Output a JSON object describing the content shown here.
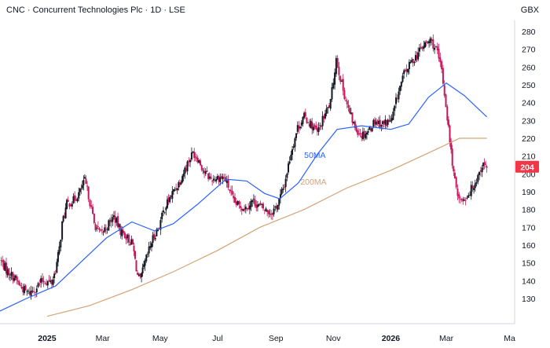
{
  "header": {
    "title": "CNC · Concurrent Technologies Plc · 1D · LSE",
    "currency": "GBX"
  },
  "colors": {
    "up": "#131722",
    "down": "#c2185b",
    "ma50": "#2962ff",
    "ma200": "#d4a373",
    "last_bg": "#f23645",
    "grid": "#f0f3fa"
  },
  "chart_data": {
    "type": "candlestick",
    "title": "CNC · Concurrent Technologies Plc · 1D · LSE",
    "ylabel": "GBX",
    "ylim": [
      120,
      285
    ],
    "yticks": [
      130,
      140,
      150,
      160,
      170,
      180,
      190,
      200,
      210,
      220,
      230,
      240,
      250,
      260,
      270,
      280
    ],
    "xticks": [
      {
        "label": "2025",
        "date": "2025-01-01",
        "bold": true
      },
      {
        "label": "Mar",
        "date": "2025-03-01",
        "bold": false
      },
      {
        "label": "May",
        "date": "2025-05-01",
        "bold": false
      },
      {
        "label": "Jul",
        "date": "2025-07-01",
        "bold": false
      },
      {
        "label": "Sep",
        "date": "2025-09-01",
        "bold": false
      },
      {
        "label": "Nov",
        "date": "2025-11-01",
        "bold": false
      },
      {
        "label": "2026",
        "date": "2026-01-01",
        "bold": true
      },
      {
        "label": "Mar",
        "date": "2026-03-01",
        "bold": false
      },
      {
        "label": "Ma",
        "date": "2026-05-01",
        "bold": false
      }
    ],
    "last_price": 204,
    "close_series": [
      [
        "2024-11-12",
        152
      ],
      [
        "2024-11-20",
        145
      ],
      [
        "2024-11-27",
        142
      ],
      [
        "2024-12-05",
        136
      ],
      [
        "2024-12-12",
        133
      ],
      [
        "2024-12-18",
        135
      ],
      [
        "2024-12-27",
        140
      ],
      [
        "2025-01-06",
        139
      ],
      [
        "2025-01-10",
        146
      ],
      [
        "2025-01-14",
        158
      ],
      [
        "2025-01-17",
        172
      ],
      [
        "2025-01-22",
        183
      ],
      [
        "2025-01-29",
        185
      ],
      [
        "2025-02-05",
        190
      ],
      [
        "2025-02-10",
        196
      ],
      [
        "2025-02-14",
        188
      ],
      [
        "2025-02-20",
        172
      ],
      [
        "2025-02-27",
        166
      ],
      [
        "2025-03-06",
        171
      ],
      [
        "2025-03-13",
        176
      ],
      [
        "2025-03-20",
        168
      ],
      [
        "2025-03-26",
        165
      ],
      [
        "2025-04-02",
        160
      ],
      [
        "2025-04-07",
        143
      ],
      [
        "2025-04-10",
        140
      ],
      [
        "2025-04-15",
        150
      ],
      [
        "2025-04-22",
        162
      ],
      [
        "2025-04-30",
        171
      ],
      [
        "2025-05-06",
        181
      ],
      [
        "2025-05-14",
        189
      ],
      [
        "2025-05-22",
        196
      ],
      [
        "2025-05-30",
        206
      ],
      [
        "2025-06-05",
        212
      ],
      [
        "2025-06-10",
        209
      ],
      [
        "2025-06-17",
        201
      ],
      [
        "2025-06-24",
        197
      ],
      [
        "2025-07-01",
        198
      ],
      [
        "2025-07-08",
        198
      ],
      [
        "2025-07-14",
        191
      ],
      [
        "2025-07-18",
        184
      ],
      [
        "2025-07-24",
        182
      ],
      [
        "2025-07-31",
        181
      ],
      [
        "2025-08-07",
        185
      ],
      [
        "2025-08-14",
        182
      ],
      [
        "2025-08-20",
        180
      ],
      [
        "2025-08-27",
        178
      ],
      [
        "2025-09-03",
        183
      ],
      [
        "2025-09-10",
        194
      ],
      [
        "2025-09-17",
        212
      ],
      [
        "2025-09-24",
        226
      ],
      [
        "2025-10-01",
        232
      ],
      [
        "2025-10-08",
        228
      ],
      [
        "2025-10-15",
        223
      ],
      [
        "2025-10-22",
        232
      ],
      [
        "2025-10-29",
        240
      ],
      [
        "2025-11-04",
        265
      ],
      [
        "2025-11-10",
        250
      ],
      [
        "2025-11-17",
        236
      ],
      [
        "2025-11-24",
        226
      ],
      [
        "2025-12-01",
        222
      ],
      [
        "2025-12-08",
        224
      ],
      [
        "2025-12-15",
        230
      ],
      [
        "2025-12-22",
        228
      ],
      [
        "2026-01-02",
        230
      ],
      [
        "2026-01-08",
        244
      ],
      [
        "2026-01-15",
        256
      ],
      [
        "2026-01-22",
        262
      ],
      [
        "2026-01-30",
        268
      ],
      [
        "2026-02-05",
        272
      ],
      [
        "2026-02-12",
        275
      ],
      [
        "2026-02-18",
        270
      ],
      [
        "2026-02-24",
        258
      ],
      [
        "2026-03-02",
        232
      ],
      [
        "2026-03-06",
        212
      ],
      [
        "2026-03-10",
        195
      ],
      [
        "2026-03-16",
        185
      ],
      [
        "2026-03-20",
        186
      ],
      [
        "2026-03-26",
        190
      ],
      [
        "2026-04-02",
        197
      ],
      [
        "2026-04-08",
        205
      ],
      [
        "2026-04-13",
        204
      ]
    ],
    "series": [
      {
        "name": "50MA",
        "color": "#2962ff",
        "points": [
          [
            "2024-11-12",
            123
          ],
          [
            "2024-12-10",
            130
          ],
          [
            "2025-01-10",
            137
          ],
          [
            "2025-02-05",
            150
          ],
          [
            "2025-03-05",
            164
          ],
          [
            "2025-04-01",
            173
          ],
          [
            "2025-04-25",
            168
          ],
          [
            "2025-05-15",
            172
          ],
          [
            "2025-06-10",
            183
          ],
          [
            "2025-07-10",
            197
          ],
          [
            "2025-08-01",
            196
          ],
          [
            "2025-08-20",
            189
          ],
          [
            "2025-09-05",
            186
          ],
          [
            "2025-09-25",
            195
          ],
          [
            "2025-10-15",
            211
          ],
          [
            "2025-11-05",
            225
          ],
          [
            "2025-12-01",
            227
          ],
          [
            "2026-01-01",
            225
          ],
          [
            "2026-01-20",
            228
          ],
          [
            "2026-02-10",
            243
          ],
          [
            "2026-03-01",
            251
          ],
          [
            "2026-03-20",
            244
          ],
          [
            "2026-04-13",
            232
          ]
        ]
      },
      {
        "name": "200MA",
        "color": "#d4a373",
        "points": [
          [
            "2025-01-01",
            120
          ],
          [
            "2025-02-15",
            126
          ],
          [
            "2025-04-01",
            135
          ],
          [
            "2025-05-15",
            145
          ],
          [
            "2025-07-01",
            157
          ],
          [
            "2025-08-15",
            170
          ],
          [
            "2025-10-01",
            180
          ],
          [
            "2025-11-15",
            192
          ],
          [
            "2026-01-01",
            202
          ],
          [
            "2026-02-15",
            213
          ],
          [
            "2026-03-15",
            220
          ],
          [
            "2026-04-13",
            220
          ]
        ]
      }
    ],
    "annotations": [
      {
        "text": "50MA",
        "date": "2025-10-01",
        "value": 209,
        "color": "#2962ff"
      },
      {
        "text": "200MA",
        "date": "2025-09-27",
        "value": 194,
        "color": "#d4a373"
      }
    ]
  }
}
